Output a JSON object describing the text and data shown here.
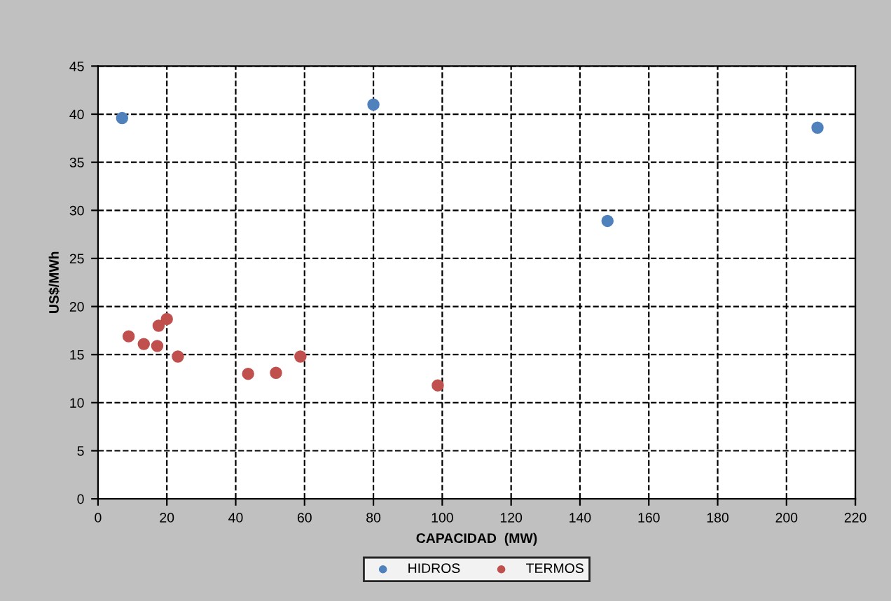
{
  "chart_data": {
    "type": "scatter",
    "xlabel": "CAPACIDAD  (MW)",
    "ylabel": "US$/MWh",
    "series": [
      {
        "name": "HIDROS",
        "color": "#4f81bd",
        "x": [
          7,
          80,
          209,
          148
        ],
        "values": [
          39.6,
          41,
          38.6,
          28.9
        ]
      },
      {
        "name": "TERMOS",
        "color": "#c0504d",
        "x": [
          8.9,
          13.3,
          17.2,
          17.6,
          19,
          20,
          23.2,
          43.6,
          51.7,
          58.8,
          98.7
        ],
        "values": [
          16.9,
          16.1,
          15.9,
          18,
          null,
          18.7,
          14.8,
          13,
          13.1,
          14.8,
          11.8
        ]
      }
    ],
    "xlim": [
      0,
      220
    ],
    "xticks": [
      0,
      20,
      40,
      60,
      80,
      100,
      120,
      140,
      160,
      180,
      200,
      220
    ],
    "ylim": [
      0,
      45
    ],
    "yticks": [
      0,
      5,
      10,
      15,
      20,
      25,
      30,
      35,
      40,
      45
    ],
    "grid": true,
    "legend": "bottom",
    "marker": "circle"
  }
}
